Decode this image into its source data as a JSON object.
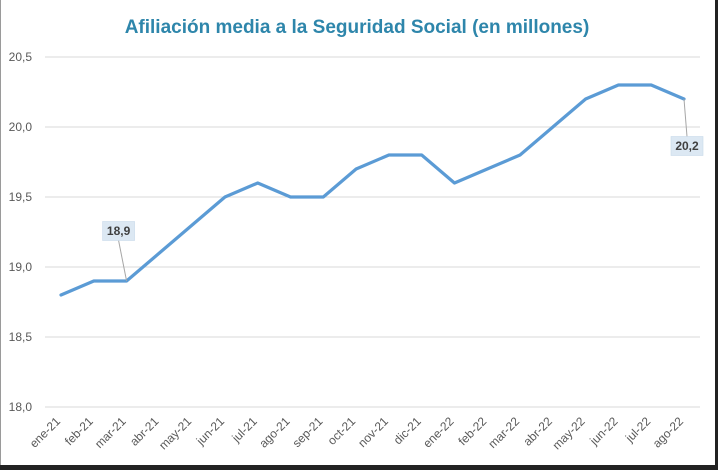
{
  "chart_data": {
    "type": "line",
    "title": "Afiliación media a la Seguridad Social (en millones)",
    "xlabel": "",
    "ylabel": "",
    "categories": [
      "ene-21",
      "feb-21",
      "mar-21",
      "abr-21",
      "may-21",
      "jun-21",
      "jul-21",
      "ago-21",
      "sep-21",
      "oct-21",
      "nov-21",
      "dic-21",
      "ene-22",
      "feb-22",
      "mar-22",
      "abr-22",
      "may-22",
      "jun-22",
      "jul-22",
      "ago-22"
    ],
    "series": [
      {
        "values": [
          18.8,
          18.9,
          18.9,
          19.1,
          19.3,
          19.5,
          19.6,
          19.5,
          19.5,
          19.7,
          19.8,
          19.8,
          19.6,
          19.7,
          19.8,
          20.0,
          20.2,
          20.3,
          20.3,
          20.2
        ],
        "color": "#5b9bd5"
      }
    ],
    "ylim": [
      18.0,
      20.5
    ],
    "yticks": [
      "18,0",
      "18,5",
      "19,0",
      "19,5",
      "20,0",
      "20,5"
    ],
    "ytick_values": [
      18.0,
      18.5,
      19.0,
      19.5,
      20.0,
      20.5
    ],
    "grid": true,
    "data_labels": [
      {
        "index": 2,
        "text": "18,9"
      },
      {
        "index": 19,
        "text": "20,2"
      }
    ],
    "gridline_color": "#d9d9d9",
    "label_bg_color": "#dce8f3"
  }
}
